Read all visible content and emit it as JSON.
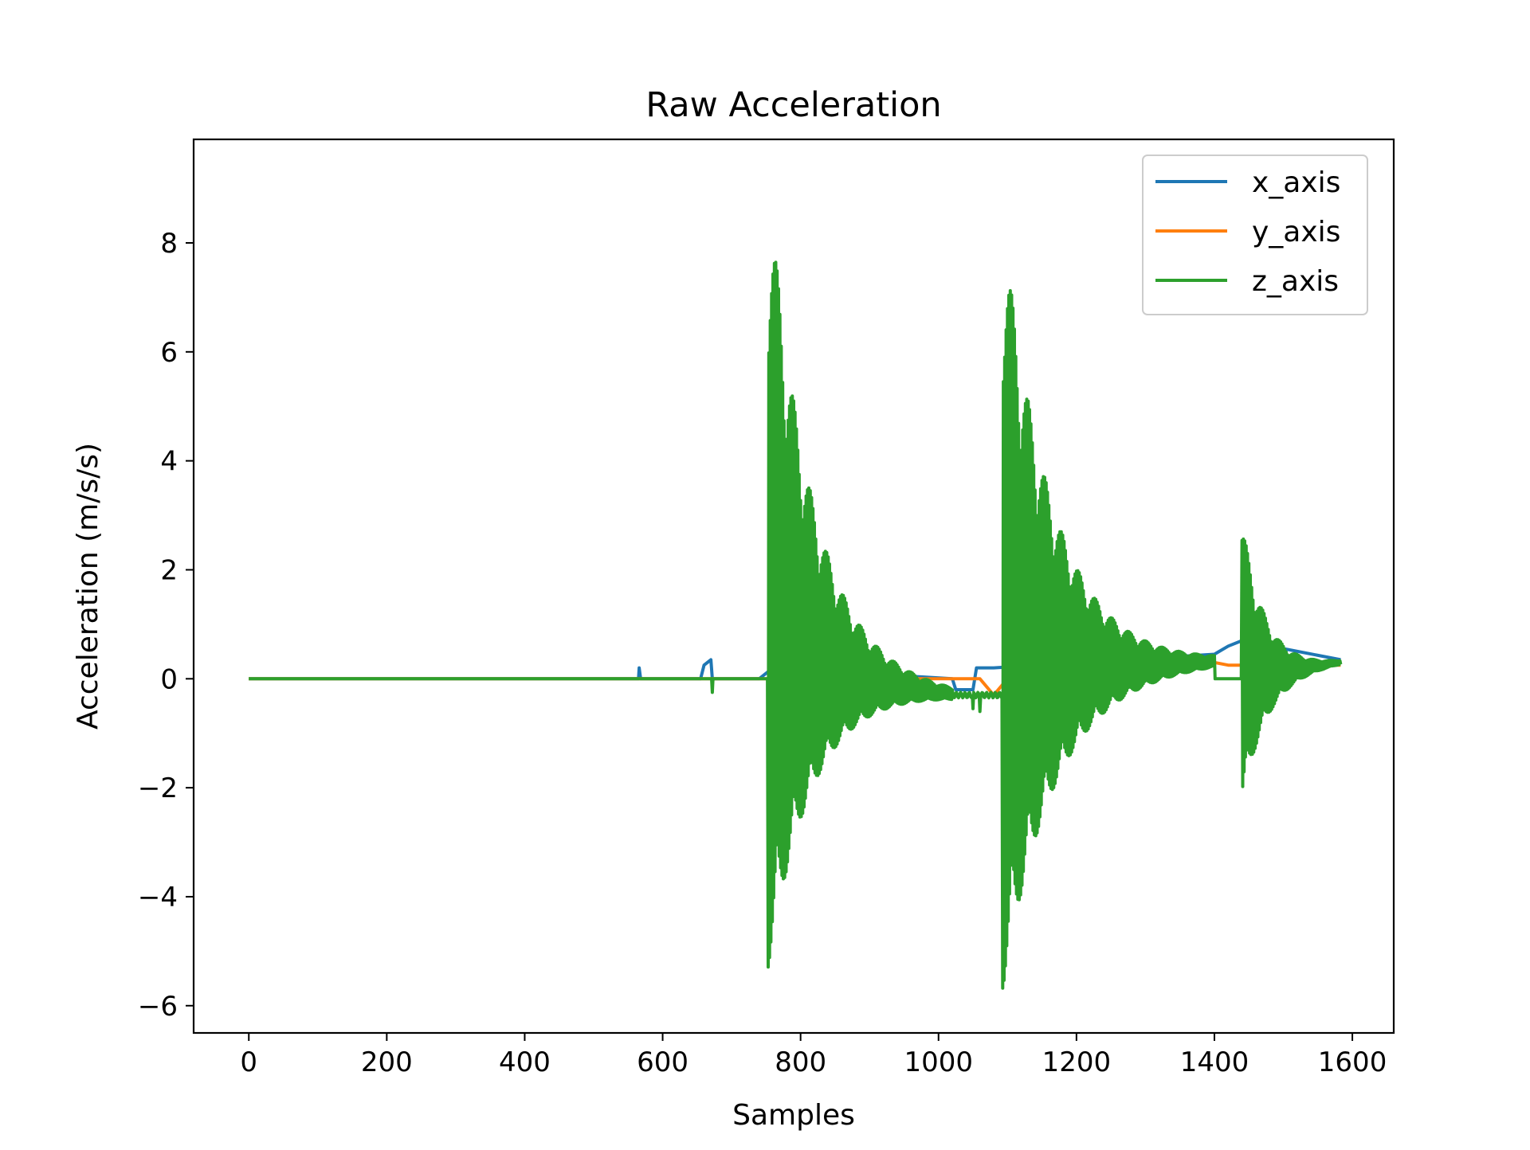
{
  "chart_data": {
    "type": "line",
    "title": "Raw Acceleration",
    "xlabel": "Samples",
    "ylabel": "Acceleration (m/s/s)",
    "xlim": [
      -80,
      1660
    ],
    "ylim": [
      -6.5,
      9.9
    ],
    "xticks": [
      0,
      200,
      400,
      600,
      800,
      1000,
      1200,
      1400,
      1600
    ],
    "xtick_labels": [
      "0",
      "200",
      "400",
      "600",
      "800",
      "1000",
      "1200",
      "1400",
      "1600"
    ],
    "yticks": [
      -6,
      -4,
      -2,
      0,
      2,
      4,
      6,
      8
    ],
    "ytick_labels": [
      "−6",
      "−4",
      "−2",
      "0",
      "2",
      "4",
      "6",
      "8"
    ],
    "grid": false,
    "legend_position": "top-right",
    "x_range": [
      0,
      1583
    ],
    "series": [
      {
        "name": "x_axis",
        "color": "#1f77b4",
        "description_points": {
          "x": [
            0,
            565,
            566,
            568,
            570,
            655,
            660,
            670,
            672,
            740,
            760,
            1020,
            1025,
            1050,
            1055,
            1070,
            1075,
            1080,
            1400,
            1420,
            1440,
            1583
          ],
          "y": [
            0,
            0,
            0.2,
            0,
            0,
            0,
            0.25,
            0.35,
            0,
            0,
            0.2,
            0,
            -0.2,
            -0.2,
            0.2,
            0.2,
            0.2,
            0.2,
            0.45,
            0.6,
            0.7,
            0.35
          ]
        }
      },
      {
        "name": "y_axis",
        "color": "#ff7f0e",
        "description_points": {
          "x": [
            0,
            1060,
            1080,
            1100,
            1400,
            1420,
            1583
          ],
          "y": [
            0,
            0,
            -0.3,
            0,
            0.3,
            0.25,
            0.25
          ]
        }
      },
      {
        "name": "z_axis",
        "color": "#2ca02c",
        "events": [
          {
            "start": 753,
            "peak_pos": 9.2,
            "peak_neg": -5.3,
            "decay_end": 1020,
            "offset_end": -0.3
          },
          {
            "start": 1093,
            "peak_pos": 8.4,
            "peak_neg": -5.7,
            "decay_end": 1400,
            "offset_end": 0.3
          },
          {
            "start": 1440,
            "peak_pos": 2.9,
            "peak_neg": -2.3,
            "decay_end": 1583,
            "offset_end": 0.3
          }
        ],
        "small_events": [
          {
            "x": 672,
            "y": -0.25
          },
          {
            "x": 1050,
            "y": -0.55
          },
          {
            "x": 1060,
            "y": -0.6
          }
        ]
      }
    ]
  }
}
